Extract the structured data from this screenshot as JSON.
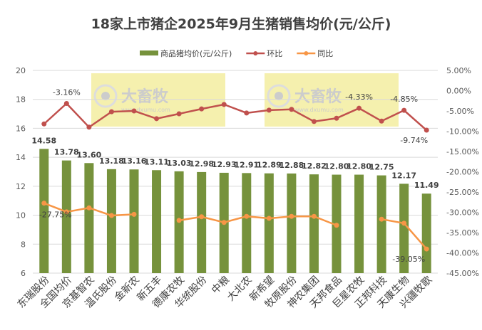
{
  "chart_data": {
    "type": "bar",
    "title": "18家上市猪企2025年9月生猪销售均价(元/公斤)",
    "legend_position": "top",
    "grid": true,
    "categories": [
      "东瑞股份",
      "全国均价",
      "京基智农",
      "温氏股份",
      "金新农",
      "新五丰",
      "德康农牧",
      "华统股份",
      "中粮",
      "大北农",
      "新希望",
      "牧原股份",
      "神农集团",
      "天邦食品",
      "巨星农牧",
      "正邦科技",
      "天康生物",
      "兴疆牧歌"
    ],
    "y_left": {
      "range": [
        6,
        20
      ],
      "ticks": [
        6,
        8,
        10,
        12,
        14,
        16,
        18,
        20
      ]
    },
    "y_right": {
      "range": [
        -45,
        5
      ],
      "ticks": [
        "5.00%",
        "0.00%",
        "-5.00%",
        "-10.00%",
        "-15.00%",
        "-20.00%",
        "-25.00%",
        "-30.00%",
        "-35.00%",
        "-40.00%",
        "-45.00%"
      ]
    },
    "series": [
      {
        "name": "商品猪均价(元/公斤)",
        "kind": "bar",
        "axis": "left",
        "color": "#76923c",
        "values": [
          14.58,
          13.78,
          13.6,
          13.18,
          13.16,
          13.11,
          13.03,
          12.98,
          12.93,
          12.91,
          12.89,
          12.88,
          12.82,
          12.8,
          12.8,
          12.75,
          12.17,
          11.49
        ],
        "labels": [
          "14.58",
          "13.78",
          "13.60",
          "13.18",
          "13.16",
          "13.11",
          "13.03",
          "12.98",
          "12.93",
          "12.91",
          "12.89",
          "12.88",
          "12.82",
          "12.80",
          "12.80",
          "12.75",
          "12.17",
          "11.49"
        ]
      },
      {
        "name": "环比",
        "kind": "line",
        "axis": "right",
        "color": "#c0504d",
        "values": [
          -8.2,
          -3.16,
          -9.0,
          -5.2,
          -5.0,
          -6.9,
          -5.7,
          -4.5,
          -3.4,
          -5.5,
          -4.8,
          -4.6,
          -7.6,
          -6.8,
          -4.33,
          -7.5,
          -4.85,
          -9.74
        ],
        "point_labels": {
          "1": "-3.16%",
          "14": "-4.33%",
          "16": "-4.85%",
          "17": "-9.74%"
        }
      },
      {
        "name": "同比",
        "kind": "line",
        "axis": "right",
        "color": "#f79646",
        "values": [
          -27.75,
          -29.9,
          -28.9,
          -30.8,
          -30.5,
          null,
          -32.0,
          -31.1,
          -32.5,
          -31.0,
          -31.5,
          -31.0,
          -31.0,
          -33.2,
          null,
          -31.7,
          -32.7,
          -39.05
        ],
        "point_labels": {
          "0": "-27.75%",
          "17": "-39.05%"
        }
      }
    ]
  },
  "watermark": {
    "logo_text": "大畜牧",
    "url_text": "www.dxumu.com",
    "color": "#f3eda0"
  }
}
